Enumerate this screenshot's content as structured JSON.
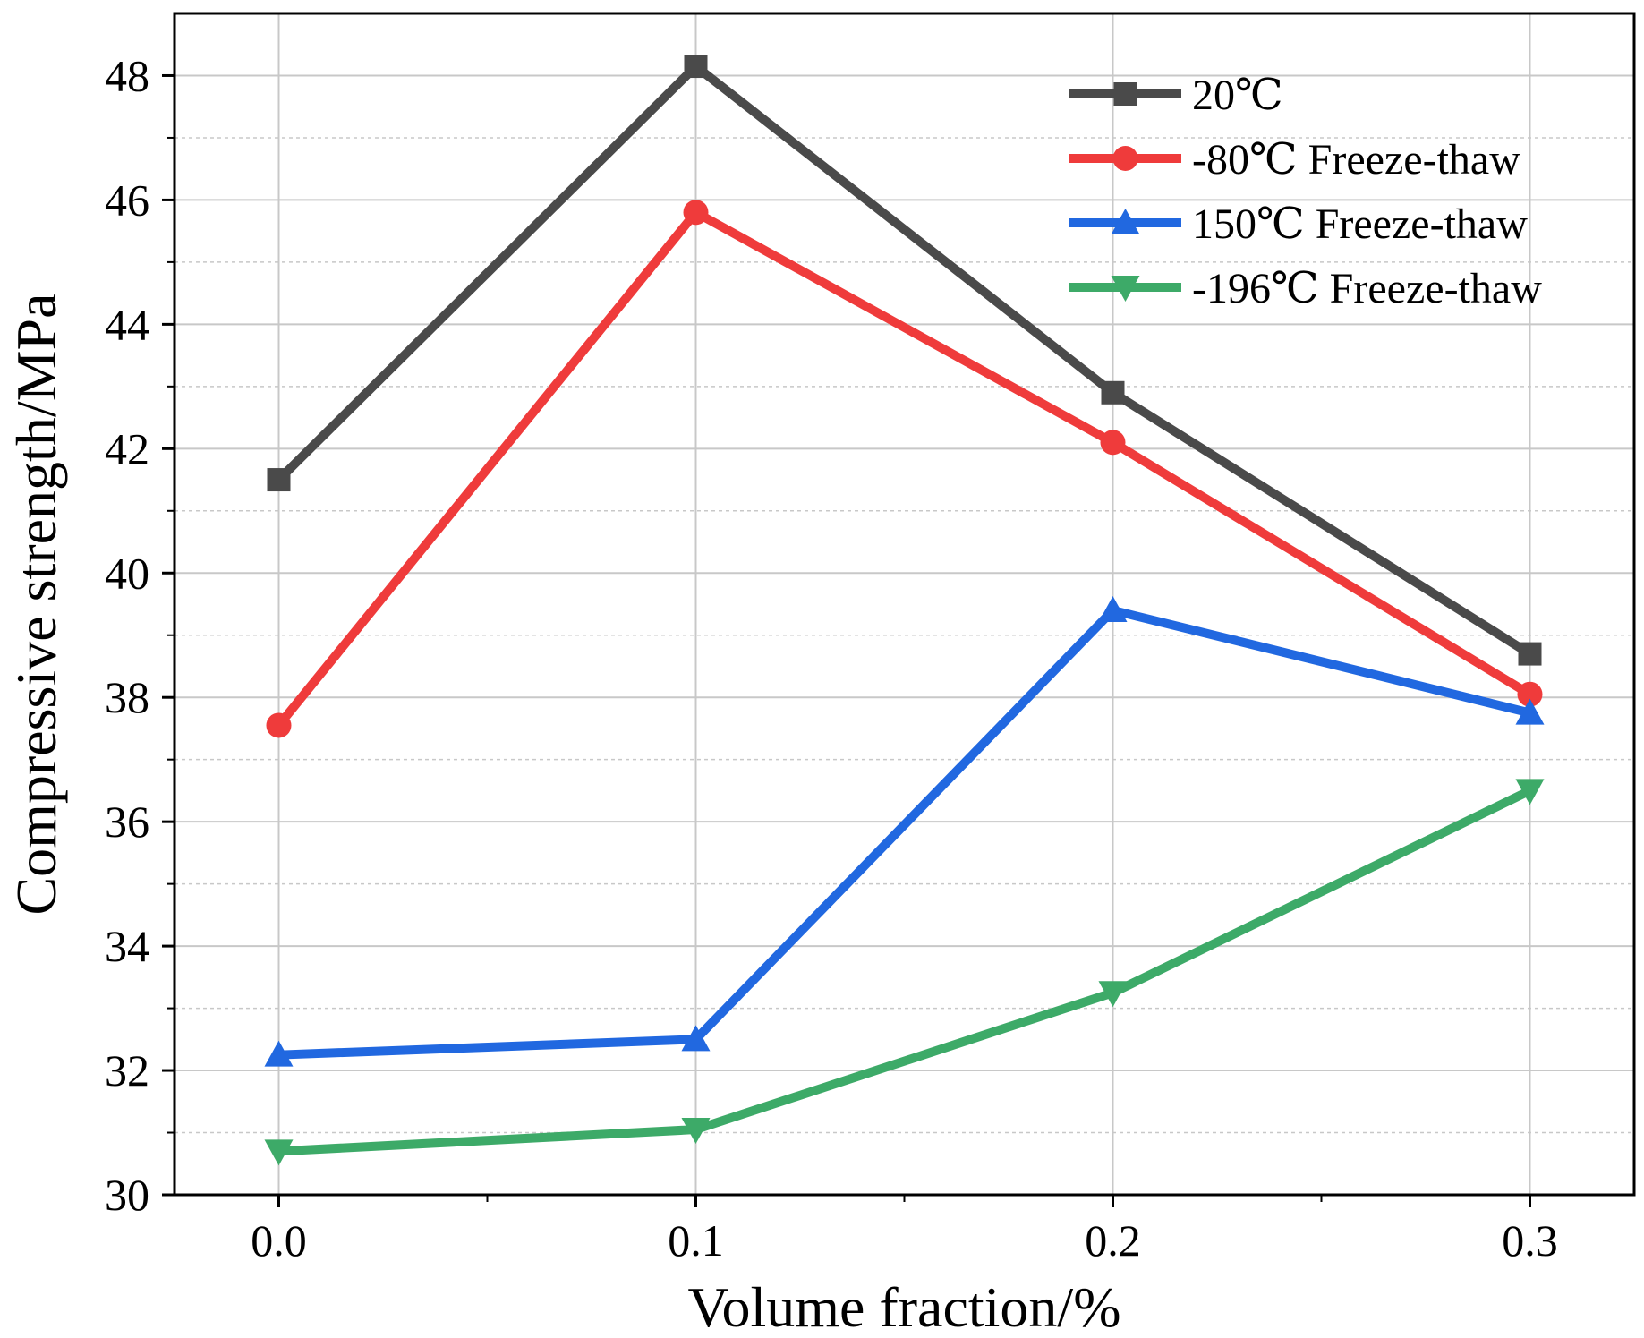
{
  "chart_data": {
    "type": "line",
    "title": "",
    "xlabel": "Volume fraction/%",
    "ylabel": "Compressive strength/MPa",
    "x": [
      0.0,
      0.1,
      0.2,
      0.3
    ],
    "x_tick_labels": [
      "0.0",
      "0.1",
      "0.2",
      "0.3"
    ],
    "xlim": [
      -0.025,
      0.325
    ],
    "ylim": [
      30,
      49
    ],
    "y_ticks": [
      30,
      32,
      34,
      36,
      38,
      40,
      42,
      44,
      46,
      48
    ],
    "y_tick_labels": [
      "30",
      "32",
      "34",
      "36",
      "38",
      "40",
      "42",
      "44",
      "46",
      "48"
    ],
    "grid": true,
    "legend_position": "top-right",
    "series": [
      {
        "name": "20℃",
        "color": "#4a4a4a",
        "marker": "square",
        "values": [
          41.5,
          48.15,
          42.9,
          38.7
        ]
      },
      {
        "name": "-80℃ Freeze-thaw",
        "color": "#ef3b3b",
        "marker": "circle",
        "values": [
          37.55,
          45.8,
          42.1,
          38.05
        ]
      },
      {
        "name": "150℃ Freeze-thaw",
        "color": "#2168e0",
        "marker": "triangle-up",
        "values": [
          32.25,
          32.5,
          39.4,
          37.75
        ]
      },
      {
        "name": "-196℃ Freeze-thaw",
        "color": "#3daa68",
        "marker": "triangle-down",
        "values": [
          30.7,
          31.05,
          33.25,
          36.5
        ]
      }
    ]
  }
}
